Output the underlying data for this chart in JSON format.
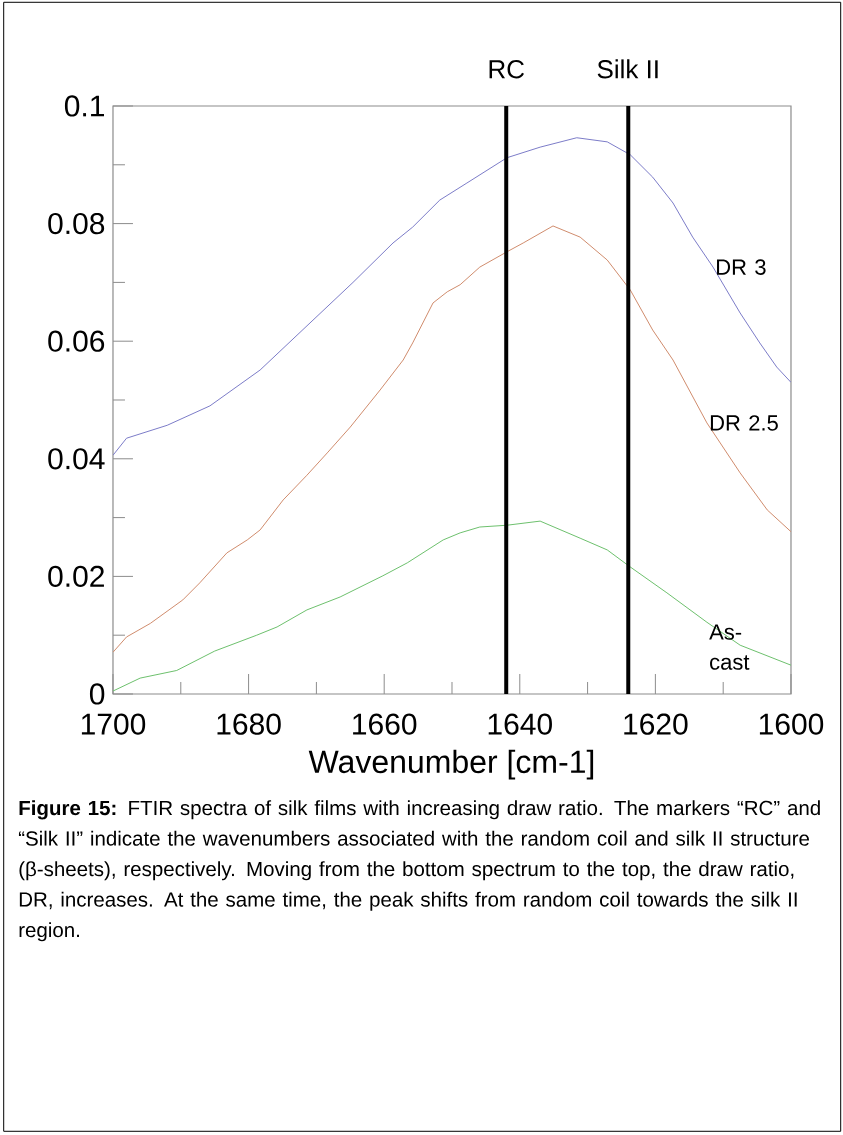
{
  "chart_data": {
    "type": "line",
    "xlabel": "Wavenumber [cm-1]",
    "xlim": [
      1700,
      1600
    ],
    "xticks": [
      1700,
      {
        "value": 1690,
        "label": null
      },
      1680,
      {
        "value": 1670,
        "label": null
      },
      1660,
      {
        "value": 1650,
        "label": null
      },
      1640,
      {
        "value": 1630,
        "label": null
      },
      1620,
      {
        "value": 1610,
        "label": null
      },
      1600
    ],
    "ylim": [
      0,
      0.1
    ],
    "yticks": [
      0,
      {
        "value": 0.01,
        "label": null
      },
      0.02,
      {
        "value": 0.03,
        "label": null
      },
      0.04,
      {
        "value": 0.05,
        "label": null
      },
      0.06,
      {
        "value": 0.07,
        "label": null
      },
      0.08,
      {
        "value": 0.09,
        "label": null
      },
      0.1
    ],
    "grid": false,
    "legend": false,
    "series": [
      {
        "name": "DR 3",
        "color": "#7b7bc8",
        "x": [
          1700,
          1698,
          1692,
          1685.7,
          1678.3,
          1664.6,
          1658.7,
          1655.8,
          1651.8,
          1647.8,
          1641.9,
          1637,
          1631.6,
          1627.1,
          1623.7,
          1620.4,
          1617.4,
          1614.5,
          1611.5,
          1607.5,
          1604.6,
          1602.1,
          1600
        ],
        "values": [
          0.0406,
          0.0435,
          0.0457,
          0.049,
          0.0551,
          0.07,
          0.0767,
          0.0794,
          0.084,
          0.0869,
          0.0912,
          0.093,
          0.0946,
          0.0939,
          0.0917,
          0.0879,
          0.0835,
          0.0777,
          0.0726,
          0.0648,
          0.0597,
          0.0556,
          0.053
        ]
      },
      {
        "name": "DR 2.5",
        "color": "#d08c6c",
        "x": [
          1700,
          1698,
          1694.5,
          1689.7,
          1687.2,
          1683.2,
          1680.2,
          1678.3,
          1674.9,
          1671.4,
          1668.4,
          1665,
          1660.6,
          1657.2,
          1655.8,
          1652.8,
          1650.7,
          1648.8,
          1645.9,
          1641.9,
          1639.5,
          1635.1,
          1631.1,
          1627.1,
          1623.7,
          1620.4,
          1617.4,
          1612.4,
          1607.5,
          1603.5,
          1600
        ],
        "values": [
          0.0071,
          0.0097,
          0.012,
          0.016,
          0.0189,
          0.024,
          0.0262,
          0.0279,
          0.033,
          0.0372,
          0.041,
          0.0454,
          0.0517,
          0.0568,
          0.0597,
          0.0665,
          0.0684,
          0.0696,
          0.0726,
          0.0752,
          0.0767,
          0.0796,
          0.0777,
          0.0738,
          0.0687,
          0.0619,
          0.0568,
          0.0461,
          0.0376,
          0.0313,
          0.0276
        ]
      },
      {
        "name": "As-cast",
        "color": "#6cc06c",
        "x": [
          1700,
          1696,
          1690.6,
          1685,
          1678.8,
          1675.8,
          1671.4,
          1666.5,
          1660.2,
          1656.6,
          1651.3,
          1648.8,
          1645.9,
          1641.9,
          1637,
          1631.1,
          1627.1,
          1623.7,
          1618.3,
          1612.4,
          1607.5,
          1600
        ],
        "values": [
          0.0005,
          0.0027,
          0.004,
          0.0073,
          0.01,
          0.0114,
          0.0143,
          0.0165,
          0.0201,
          0.0223,
          0.0262,
          0.0274,
          0.0284,
          0.0287,
          0.0294,
          0.0265,
          0.0245,
          0.0216,
          0.0172,
          0.0122,
          0.0083,
          0.0049
        ]
      }
    ],
    "ref_lines": [
      {
        "axis": "x",
        "value": 1642,
        "label": "RC",
        "color": "#000000"
      },
      {
        "axis": "x",
        "value": 1624,
        "label": "Silk II",
        "color": "#000000"
      }
    ],
    "annotations": [
      "**Figure 15:** FTIR spectra of silk films with increasing draw ratio.  The markers “RC” and “Silk II” indicate the wavenumbers associated with the random coil and silk II structure (β-sheets), respectively.  Moving from the bottom spectrum to the top, the draw ratio, DR, increases.  At the same time, the peak shifts from random coil towards the silk II region."
    ]
  }
}
